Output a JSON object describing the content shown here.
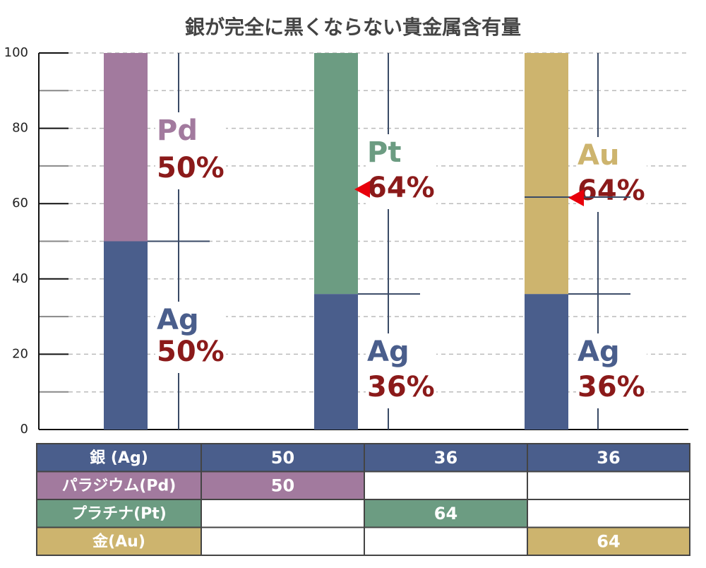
{
  "chart_data": {
    "type": "stacked_bar",
    "title": "銀が完全に黒くならない貴金属含有量",
    "categories": [
      null,
      null,
      null
    ],
    "series": [
      {
        "name": "銀 (Ag)",
        "label": "Ag",
        "color": "#4a5e8c",
        "values": [
          50,
          36,
          36
        ],
        "value_labels": [
          "50%",
          "36%",
          "36%"
        ]
      },
      {
        "name": "パラジウム(Pd)",
        "label": "Pd",
        "color": "#a27a9e",
        "values": [
          50,
          null,
          null
        ],
        "value_labels": [
          "50%",
          null,
          null
        ]
      },
      {
        "name": "プラチナ(Pt)",
        "label": "Pt",
        "color": "#6c9c82",
        "values": [
          null,
          64,
          null
        ],
        "value_labels": [
          null,
          "64%",
          null
        ]
      },
      {
        "name": "金(Au)",
        "label": "Au",
        "color": "#cdb46e",
        "values": [
          null,
          null,
          64
        ],
        "value_labels": [
          null,
          null,
          "64%"
        ]
      }
    ],
    "ylim": [
      0,
      100
    ],
    "yticks": [
      0,
      20,
      40,
      60,
      80,
      100
    ],
    "minor_yticks": [
      10,
      30,
      50,
      70,
      90
    ],
    "grid": true
  }
}
